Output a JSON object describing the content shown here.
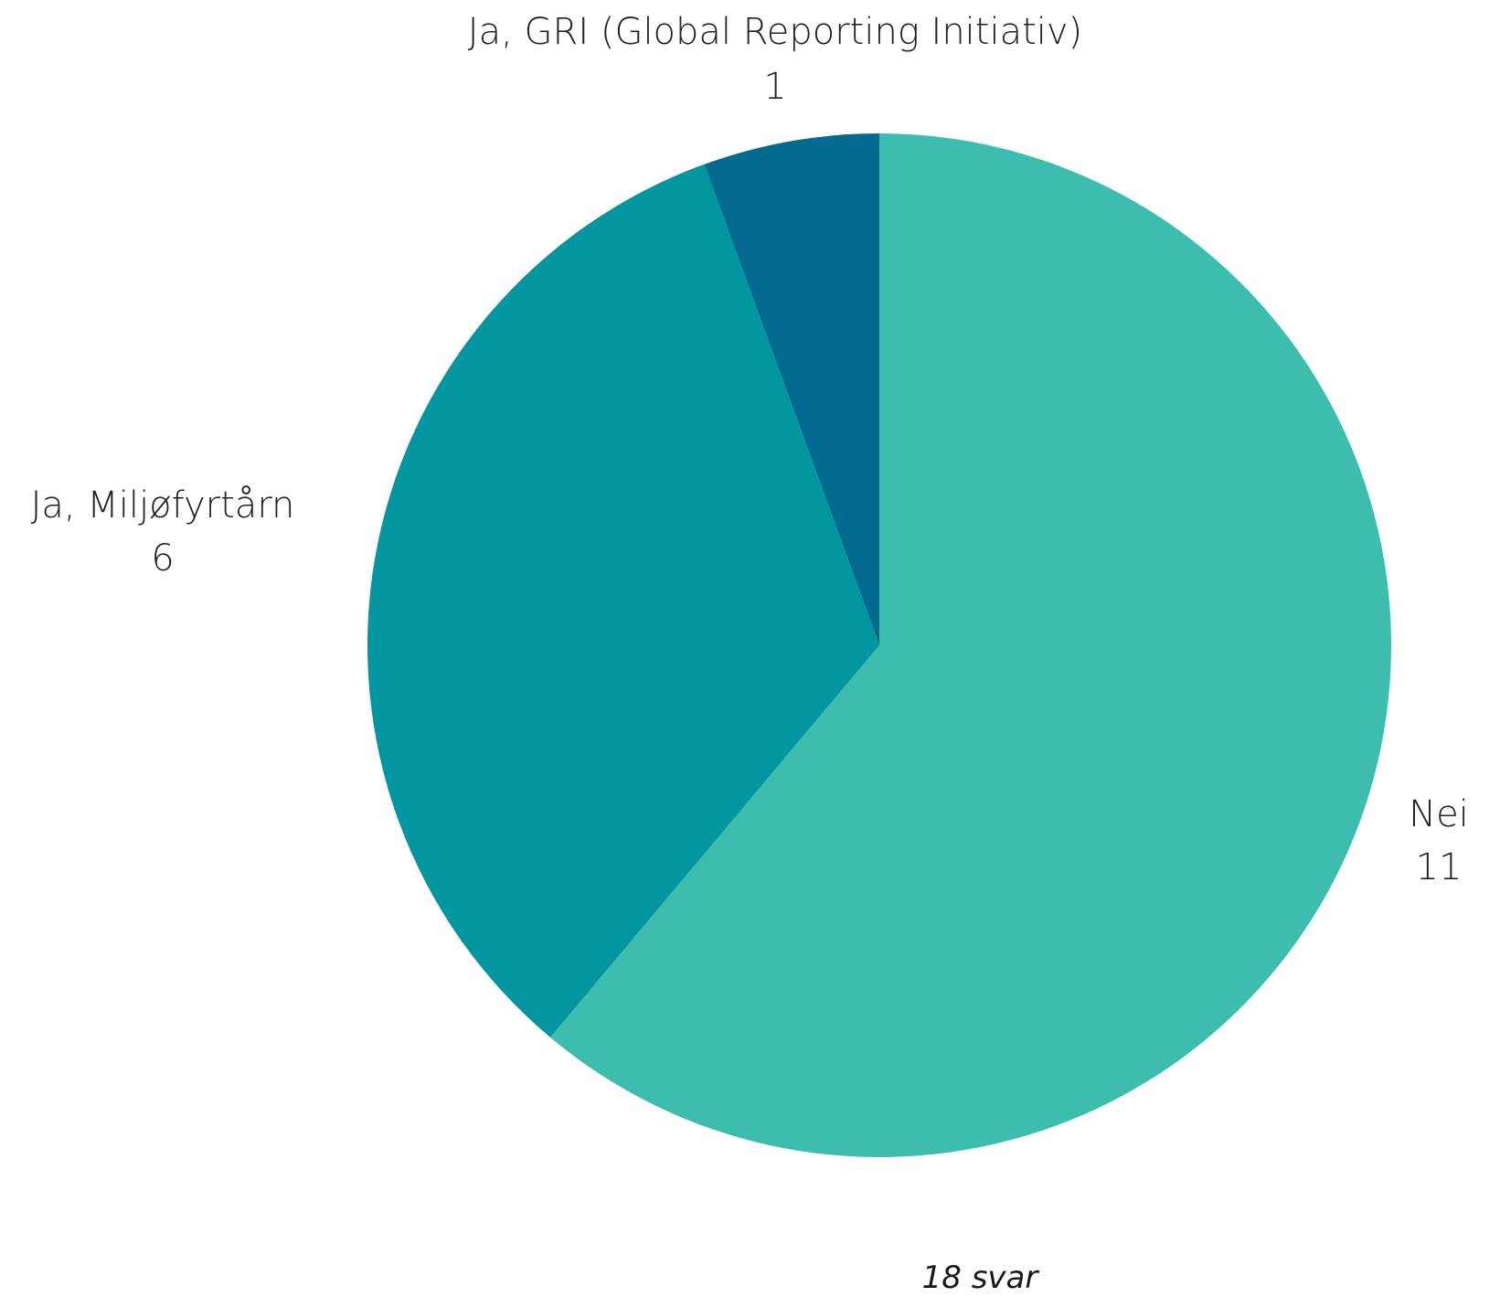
{
  "chart_data": {
    "type": "pie",
    "slices": [
      {
        "label": "Nei",
        "value": 11,
        "color": "#3dbdad"
      },
      {
        "label": "Ja, Miljøfyrtårn",
        "value": 6,
        "color": "#0296a1"
      },
      {
        "label": "Ja, GRI (Global Reporting Initiativ)",
        "value": 1,
        "color": "#026b8f"
      }
    ],
    "direction": "clockwise",
    "start_angle_deg": 0,
    "data_labels": "label and value outside",
    "legend": "none"
  },
  "footnote": "18 svar"
}
